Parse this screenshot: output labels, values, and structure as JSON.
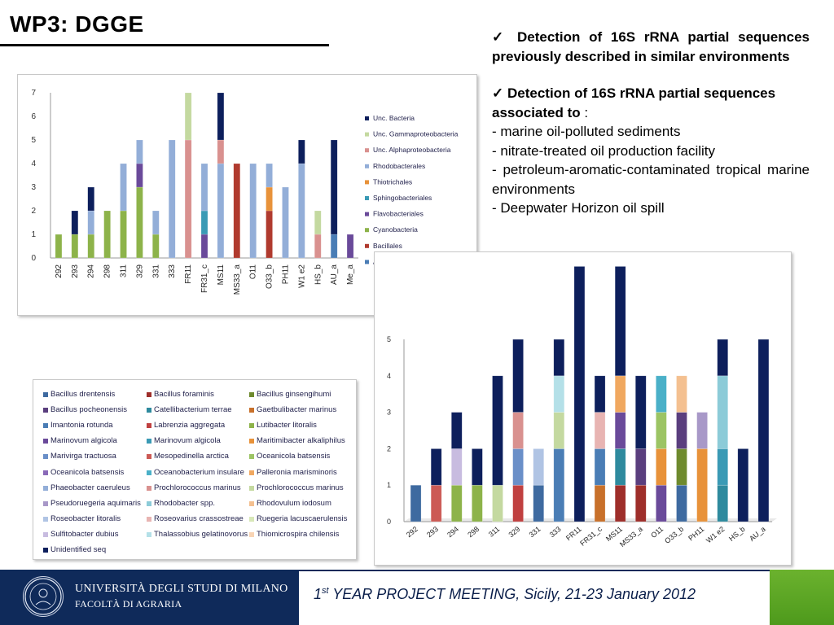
{
  "slide_title": "WP3: DGGE",
  "right_text": {
    "bullet1": "Detection of 16S rRNA partial sequences previously described in similar environments",
    "bullet2_bold": "Detection of 16S rRNA partial sequences associated to",
    "bullet2_tail": " :",
    "items": [
      "- marine oil-polluted sediments",
      "- nitrate-treated oil production facility",
      "- petroleum-aromatic-contaminated tropical marine environments",
      "- Deepwater Horizon oil spill"
    ],
    "check_icon": "check-icon"
  },
  "footer": {
    "university": "UNIVERSITÀ DEGLI STUDI DI MILANO",
    "faculty": "FACOLTÀ DI AGRARIA",
    "meeting_ordinal_num": "1",
    "meeting_ordinal_sup": "st",
    "meeting_rest": " YEAR PROJECT MEETING, Sicily, 21-23 January 2012",
    "colors": {
      "navy": "#0f2a5a",
      "green": "#6bb22e"
    }
  },
  "chart_data": [
    {
      "type": "bar",
      "stacked": true,
      "categories": [
        "292",
        "293",
        "294",
        "298",
        "311",
        "329",
        "331",
        "333",
        "FR11",
        "FR31_c",
        "MS11",
        "MS33_a",
        "O11",
        "O33_b",
        "PH11",
        "W1 e2",
        "HS_b",
        "AU_a",
        "Me_a"
      ],
      "ylim": [
        0,
        7
      ],
      "yticks": [
        "0",
        "1",
        "2",
        "3",
        "4",
        "5",
        "6",
        "7"
      ],
      "legend_position": "right",
      "series": [
        {
          "name": "Actinomycetales",
          "color": "#4a7db5",
          "values": [
            0,
            0,
            0,
            0,
            0,
            0,
            0,
            0,
            0,
            0,
            0,
            0,
            0,
            0,
            0,
            0,
            0,
            1,
            0
          ]
        },
        {
          "name": "Bacillales",
          "color": "#b03a2e",
          "values": [
            0,
            0,
            0,
            0,
            0,
            0,
            0,
            0,
            0,
            0,
            0,
            4,
            0,
            2,
            0,
            0,
            0,
            0,
            0
          ]
        },
        {
          "name": "Cyanobacteria",
          "color": "#8db34a",
          "values": [
            1,
            1,
            1,
            2,
            2,
            3,
            1,
            0,
            0,
            0,
            0,
            0,
            0,
            0,
            0,
            0,
            0,
            0,
            0
          ]
        },
        {
          "name": "Flavobacteriales",
          "color": "#6a4a9a",
          "values": [
            0,
            0,
            0,
            0,
            0,
            1,
            0,
            0,
            0,
            1,
            0,
            0,
            0,
            0,
            0,
            0,
            0,
            0,
            1
          ]
        },
        {
          "name": "Sphingobacteriales",
          "color": "#3a9ab5",
          "values": [
            0,
            0,
            0,
            0,
            0,
            0,
            0,
            0,
            0,
            1,
            0,
            0,
            0,
            0,
            0,
            0,
            0,
            0,
            0
          ]
        },
        {
          "name": "Thiotrichales",
          "color": "#e8923a",
          "values": [
            0,
            0,
            0,
            0,
            0,
            0,
            0,
            0,
            0,
            0,
            0,
            0,
            0,
            1,
            0,
            0,
            0,
            0,
            0
          ]
        },
        {
          "name": "Rhodobacterales",
          "color": "#93aed8",
          "values": [
            0,
            0,
            1,
            0,
            2,
            1,
            1,
            5,
            0,
            2,
            4,
            0,
            4,
            1,
            3,
            4,
            0,
            0,
            0
          ]
        },
        {
          "name": "Unc. Alphaproteobacteria",
          "color": "#d9918f",
          "values": [
            0,
            0,
            0,
            0,
            0,
            0,
            0,
            0,
            5,
            0,
            1,
            0,
            0,
            0,
            0,
            0,
            1,
            0,
            0
          ]
        },
        {
          "name": "Unc. Gammaproteobacteria",
          "color": "#c4d9a0",
          "values": [
            0,
            0,
            0,
            0,
            0,
            0,
            0,
            0,
            2,
            0,
            0,
            0,
            0,
            0,
            0,
            0,
            1,
            0,
            0
          ]
        },
        {
          "name": "Unc. Bacteria",
          "color": "#0d1f5c",
          "values": [
            0,
            1,
            1,
            0,
            0,
            0,
            0,
            0,
            0,
            0,
            2,
            0,
            0,
            0,
            0,
            1,
            0,
            4,
            0
          ]
        }
      ]
    },
    {
      "type": "bar",
      "stacked": true,
      "categories": [
        "292",
        "293",
        "294",
        "298",
        "311",
        "329",
        "331",
        "333",
        "FR11",
        "FR31_c",
        "MS11",
        "MS33_a",
        "O11",
        "O33_b",
        "PH11",
        "W1 e2",
        "HS_b",
        "AU_a"
      ],
      "ylim": [
        0,
        5
      ],
      "yticks": [
        "0",
        "1",
        "2",
        "3",
        "4",
        "5"
      ],
      "legend_position": "bottom-left",
      "legend": [
        {
          "name": "Bacillus drentensis",
          "color": "#3e6aa0"
        },
        {
          "name": "Bacillus foraminis",
          "color": "#9e2e2a"
        },
        {
          "name": "Bacillus ginsengihumi",
          "color": "#6e8a2e"
        },
        {
          "name": "Bacillus pocheonensis",
          "color": "#5a3e7e"
        },
        {
          "name": "Catellibacterium terrae",
          "color": "#2e8a9e"
        },
        {
          "name": "Gaetbulibacter marinus",
          "color": "#c8702a"
        },
        {
          "name": "Imantonia rotunda",
          "color": "#4a7db5"
        },
        {
          "name": "Labrenzia aggregata",
          "color": "#c04040"
        },
        {
          "name": "Lutibacter litoralis",
          "color": "#8db34a"
        },
        {
          "name": "Marinovum algicola",
          "color": "#6a4a9a"
        },
        {
          "name": "Marinovum algicola",
          "color": "#3a9ab5"
        },
        {
          "name": "Maritimibacter alkaliphilus",
          "color": "#e8923a"
        },
        {
          "name": "Marivirga tractuosa",
          "color": "#6a8fc8"
        },
        {
          "name": "Mesopedinella arctica",
          "color": "#cc5a55"
        },
        {
          "name": "Oceanicola batsensis",
          "color": "#9cc464"
        },
        {
          "name": "Oceanicola batsensis",
          "color": "#8a6ab8"
        },
        {
          "name": "Oceanobacterium insulare",
          "color": "#4ab0c8"
        },
        {
          "name": "Palleronia marisminoris",
          "color": "#f0a860"
        },
        {
          "name": "Phaeobacter caeruleus",
          "color": "#93aed8"
        },
        {
          "name": "Prochlorococcus marinus",
          "color": "#d9918f"
        },
        {
          "name": "Prochlorococcus marinus",
          "color": "#c4d9a0"
        },
        {
          "name": "Pseudoruegeria aquimaris",
          "color": "#a898c8"
        },
        {
          "name": "Rhodobacter spp.",
          "color": "#8ccbd8"
        },
        {
          "name": "Rhodovulum iodosum",
          "color": "#f4c090"
        },
        {
          "name": "Roseobacter litoralis",
          "color": "#b0c4e4"
        },
        {
          "name": "Roseovarius crassostreae",
          "color": "#e8b4b2"
        },
        {
          "name": "Ruegeria lacuscaerulensis",
          "color": "#d8e8b8"
        },
        {
          "name": "Sulfitobacter dubius",
          "color": "#c8bce0"
        },
        {
          "name": "Thalassobius gelatinovorus",
          "color": "#b4e0e8"
        },
        {
          "name": "Thiomicrospira chilensis",
          "color": "#f8d4b4"
        },
        {
          "name": "Unidentified seq",
          "color": "#0d1f5c"
        }
      ],
      "stacks": [
        [
          {
            "color": "#3e6aa0",
            "value": 1
          }
        ],
        [
          {
            "color": "#cc5a55",
            "value": 1
          },
          {
            "color": "#0d1f5c",
            "value": 1
          }
        ],
        [
          {
            "color": "#8db34a",
            "value": 1
          },
          {
            "color": "#c8bce0",
            "value": 1
          },
          {
            "color": "#0d1f5c",
            "value": 1
          }
        ],
        [
          {
            "color": "#8db34a",
            "value": 1
          },
          {
            "color": "#0d1f5c",
            "value": 1
          }
        ],
        [
          {
            "color": "#c4d9a0",
            "value": 1
          },
          {
            "color": "#0d1f5c",
            "value": 3
          }
        ],
        [
          {
            "color": "#c04040",
            "value": 1
          },
          {
            "color": "#6a8fc8",
            "value": 1
          },
          {
            "color": "#d9918f",
            "value": 1
          },
          {
            "color": "#0d1f5c",
            "value": 2
          }
        ],
        [
          {
            "color": "#3e6aa0",
            "value": 1
          },
          {
            "color": "#b0c4e4",
            "value": 1
          }
        ],
        [
          {
            "color": "#4a7db5",
            "value": 2
          },
          {
            "color": "#c4d9a0",
            "value": 1
          },
          {
            "color": "#b4e0e8",
            "value": 1
          },
          {
            "color": "#0d1f5c",
            "value": 1
          }
        ],
        [
          {
            "color": "#0d1f5c",
            "value": 7
          }
        ],
        [
          {
            "color": "#c8702a",
            "value": 1
          },
          {
            "color": "#4a7db5",
            "value": 1
          },
          {
            "color": "#e8b4b2",
            "value": 1
          },
          {
            "color": "#0d1f5c",
            "value": 1
          }
        ],
        [
          {
            "color": "#9e2e2a",
            "value": 1
          },
          {
            "color": "#2e8a9e",
            "value": 1
          },
          {
            "color": "#6a4a9a",
            "value": 1
          },
          {
            "color": "#f0a860",
            "value": 1
          },
          {
            "color": "#0d1f5c",
            "value": 3
          }
        ],
        [
          {
            "color": "#9e2e2a",
            "value": 1
          },
          {
            "color": "#5a3e7e",
            "value": 1
          },
          {
            "color": "#0d1f5c",
            "value": 2
          }
        ],
        [
          {
            "color": "#6a4a9a",
            "value": 1
          },
          {
            "color": "#e8923a",
            "value": 1
          },
          {
            "color": "#9cc464",
            "value": 1
          },
          {
            "color": "#4ab0c8",
            "value": 1
          }
        ],
        [
          {
            "color": "#3e6aa0",
            "value": 1
          },
          {
            "color": "#6e8a2e",
            "value": 1
          },
          {
            "color": "#5a3e7e",
            "value": 1
          },
          {
            "color": "#f4c090",
            "value": 1
          }
        ],
        [
          {
            "color": "#e8923a",
            "value": 2
          },
          {
            "color": "#a898c8",
            "value": 1
          }
        ],
        [
          {
            "color": "#2e8a9e",
            "value": 1
          },
          {
            "color": "#3a9ab5",
            "value": 1
          },
          {
            "color": "#8ccbd8",
            "value": 2
          },
          {
            "color": "#0d1f5c",
            "value": 1
          }
        ],
        [
          {
            "color": "#0d1f5c",
            "value": 2
          }
        ],
        [
          {
            "color": "#0d1f5c",
            "value": 5
          }
        ]
      ]
    }
  ]
}
